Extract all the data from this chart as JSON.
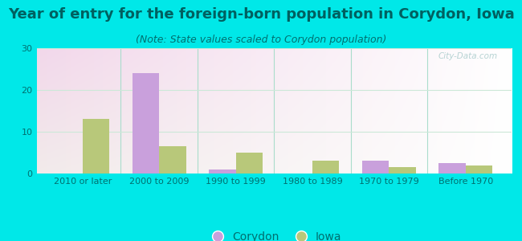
{
  "title": "Year of entry for the foreign-born population in Corydon, Iowa",
  "subtitle": "(Note: State values scaled to Corydon population)",
  "categories": [
    "2010 or later",
    "2000 to 2009",
    "1990 to 1999",
    "1980 to 1989",
    "1970 to 1979",
    "Before 1970"
  ],
  "corydon_values": [
    0,
    24,
    1,
    0,
    3,
    2.5
  ],
  "iowa_values": [
    13,
    6.5,
    5,
    3,
    1.5,
    2
  ],
  "corydon_color": "#c9a0dc",
  "iowa_color": "#b8c87a",
  "background_color": "#00e8e8",
  "ylim": [
    0,
    30
  ],
  "yticks": [
    0,
    10,
    20,
    30
  ],
  "bar_width": 0.35,
  "title_fontsize": 13,
  "subtitle_fontsize": 9,
  "tick_fontsize": 8,
  "legend_fontsize": 10,
  "watermark": "City-Data.com",
  "title_color": "#006060",
  "subtitle_color": "#007070",
  "tick_color": "#007070",
  "separator_color": "#aaddcc",
  "grid_color": "#cce8d8"
}
